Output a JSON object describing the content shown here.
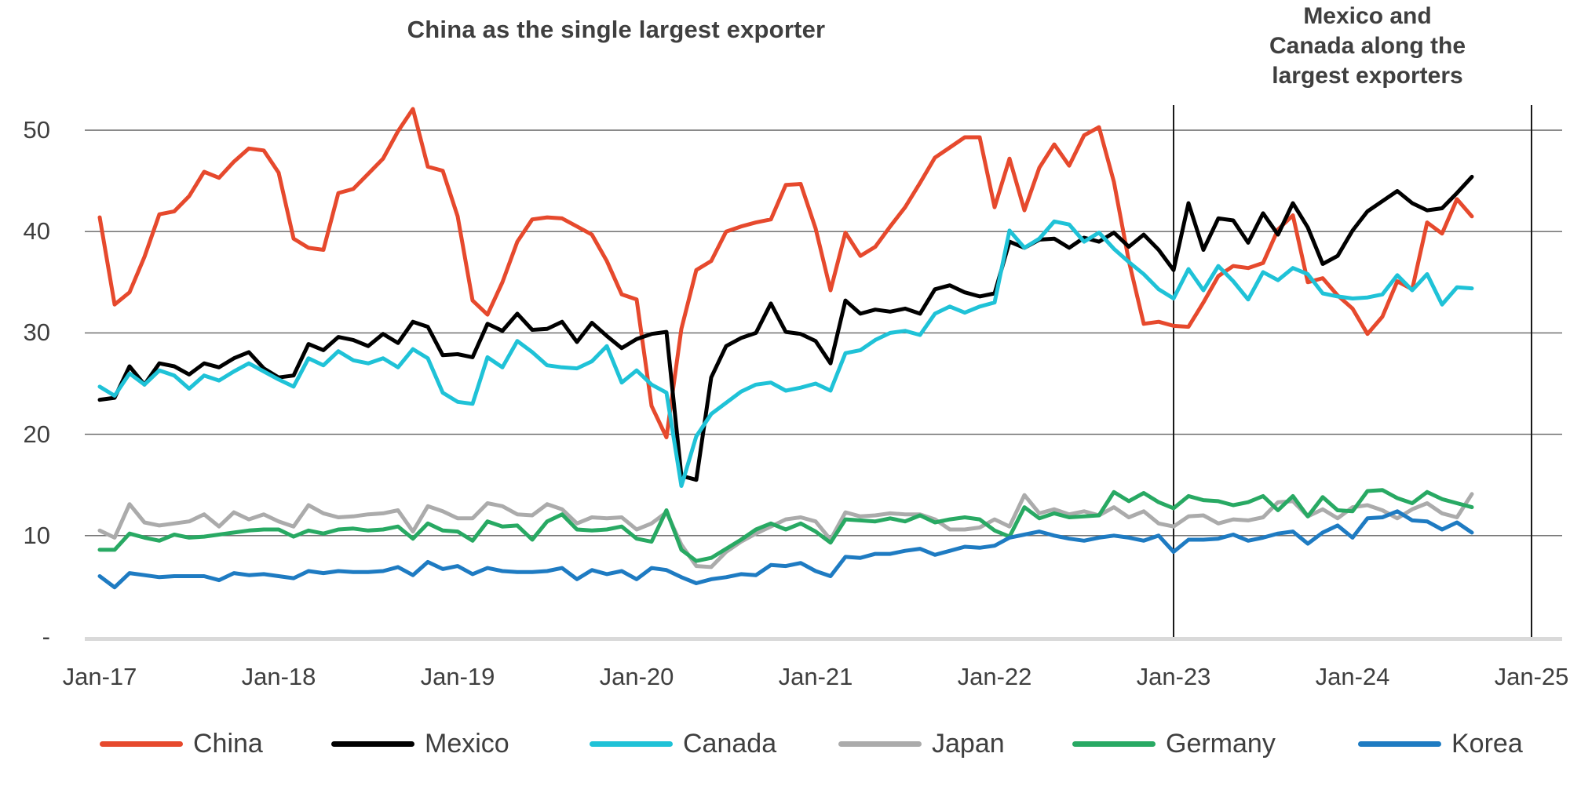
{
  "chart_data": {
    "type": "line",
    "annotations": {
      "left": "China as the single largest exporter",
      "right_lines": [
        "Mexico and",
        "Canada along the",
        "largest exporters"
      ]
    },
    "x_axis": {
      "tick_labels": [
        "Jan-17",
        "Jan-18",
        "Jan-19",
        "Jan-20",
        "Jan-21",
        "Jan-22",
        "Jan-23",
        "Jan-24",
        "Jan-25"
      ],
      "tick_month_indices": [
        0,
        12,
        24,
        36,
        48,
        60,
        72,
        84,
        96
      ],
      "start_month": "Jan-17",
      "end_month": "Sep-24"
    },
    "y_axis": {
      "ticks": [
        {
          "label": "50",
          "value": 50
        },
        {
          "label": "40",
          "value": 40
        },
        {
          "label": "30",
          "value": 30
        },
        {
          "label": "20",
          "value": 20
        },
        {
          "label": "10",
          "value": 10
        },
        {
          "label": "-",
          "value": 0
        }
      ],
      "range": [
        0,
        55
      ],
      "grid": true
    },
    "vertical_markers": [
      {
        "label": "Jan-23",
        "month_index": 72
      },
      {
        "label": "Jan-25",
        "month_index": 96
      }
    ],
    "legend_position": "bottom",
    "series": [
      {
        "name": "China",
        "color": "#E6492D",
        "values": [
          41.4,
          32.8,
          34.0,
          37.5,
          41.7,
          42.0,
          43.5,
          45.9,
          45.3,
          46.9,
          48.2,
          48.0,
          45.8,
          39.3,
          38.4,
          38.2,
          43.8,
          44.2,
          45.7,
          47.2,
          49.9,
          52.1,
          46.4,
          46.0,
          41.5,
          33.2,
          31.8,
          35.0,
          39.0,
          41.2,
          41.4,
          41.3,
          40.5,
          39.7,
          37.1,
          33.8,
          33.3,
          22.8,
          19.7,
          30.4,
          36.2,
          37.1,
          40.0,
          40.5,
          40.9,
          41.2,
          44.6,
          44.7,
          40.3,
          34.2,
          39.9,
          37.6,
          38.5,
          40.5,
          42.4,
          44.8,
          47.3,
          48.3,
          49.3,
          49.3,
          42.4,
          47.2,
          42.1,
          46.3,
          48.6,
          46.5,
          49.5,
          50.3,
          44.9,
          37.1,
          30.9,
          31.1,
          30.7,
          30.6,
          33.0,
          35.6,
          36.6,
          36.4,
          36.9,
          40.2,
          41.6,
          35.0,
          35.4,
          33.7,
          32.4,
          29.9,
          31.6,
          35.1,
          34.3,
          40.9,
          39.8,
          43.2,
          41.5
        ]
      },
      {
        "name": "Mexico",
        "color": "#000000",
        "values": [
          23.4,
          23.6,
          26.7,
          24.9,
          27.0,
          26.7,
          25.9,
          27.0,
          26.6,
          27.5,
          28.1,
          26.5,
          25.6,
          25.8,
          28.9,
          28.3,
          29.6,
          29.3,
          28.7,
          29.9,
          29.0,
          31.1,
          30.6,
          27.8,
          27.9,
          27.6,
          30.9,
          30.2,
          31.9,
          30.3,
          30.4,
          31.1,
          29.1,
          31.0,
          29.7,
          28.5,
          29.4,
          29.9,
          30.1,
          15.9,
          15.5,
          25.6,
          28.7,
          29.5,
          30.0,
          32.9,
          30.1,
          29.9,
          29.2,
          27.0,
          33.2,
          31.9,
          32.3,
          32.1,
          32.4,
          31.9,
          34.3,
          34.7,
          34.0,
          33.6,
          33.9,
          39.0,
          38.4,
          39.2,
          39.3,
          38.4,
          39.4,
          39.0,
          39.9,
          38.5,
          39.7,
          38.2,
          36.2,
          42.8,
          38.2,
          41.3,
          41.1,
          38.9,
          41.8,
          39.7,
          42.8,
          40.4,
          36.8,
          37.6,
          40.1,
          42.0,
          43.0,
          44.0,
          42.8,
          42.1,
          42.3,
          43.8,
          45.4
        ]
      },
      {
        "name": "Canada",
        "color": "#1FC2D7",
        "values": [
          24.7,
          23.8,
          26.0,
          24.9,
          26.3,
          25.8,
          24.5,
          25.8,
          25.3,
          26.2,
          27.0,
          26.2,
          25.4,
          24.7,
          27.5,
          26.8,
          28.2,
          27.3,
          27.0,
          27.5,
          26.6,
          28.4,
          27.5,
          24.1,
          23.2,
          23.0,
          27.6,
          26.6,
          29.2,
          28.1,
          26.8,
          26.6,
          26.5,
          27.2,
          28.7,
          25.1,
          26.3,
          24.9,
          24.1,
          14.9,
          19.8,
          22.0,
          23.1,
          24.2,
          24.9,
          25.1,
          24.3,
          24.6,
          25.0,
          24.3,
          28.0,
          28.3,
          29.3,
          30.0,
          30.2,
          29.8,
          31.9,
          32.6,
          32.0,
          32.6,
          33.0,
          40.1,
          38.4,
          39.3,
          41.0,
          40.7,
          39.0,
          39.9,
          38.3,
          37.0,
          35.8,
          34.3,
          33.4,
          36.3,
          34.2,
          36.6,
          35.1,
          33.3,
          36.0,
          35.2,
          36.4,
          35.8,
          33.9,
          33.6,
          33.4,
          33.5,
          33.8,
          35.7,
          34.2,
          35.8,
          32.8,
          34.5,
          34.4
        ]
      },
      {
        "name": "Japan",
        "color": "#ABABAB",
        "values": [
          10.5,
          9.8,
          13.1,
          11.3,
          11.0,
          11.2,
          11.4,
          12.1,
          10.9,
          12.3,
          11.6,
          12.1,
          11.4,
          10.9,
          13.0,
          12.2,
          11.8,
          11.9,
          12.1,
          12.2,
          12.5,
          10.4,
          12.9,
          12.4,
          11.7,
          11.7,
          13.2,
          12.9,
          12.1,
          12.0,
          13.1,
          12.6,
          11.2,
          11.8,
          11.7,
          11.8,
          10.6,
          11.2,
          12.3,
          9.1,
          7.0,
          6.9,
          8.4,
          9.4,
          10.2,
          10.9,
          11.6,
          11.8,
          11.4,
          9.6,
          12.3,
          11.9,
          12.0,
          12.2,
          12.1,
          12.1,
          11.6,
          10.6,
          10.6,
          10.8,
          11.6,
          10.9,
          14.0,
          12.2,
          12.6,
          12.1,
          12.4,
          12.0,
          12.8,
          11.8,
          12.4,
          11.2,
          10.9,
          11.9,
          12.0,
          11.2,
          11.6,
          11.5,
          11.8,
          13.3,
          13.4,
          11.9,
          12.6,
          11.7,
          12.8,
          13.0,
          12.5,
          11.7,
          12.6,
          13.2,
          12.2,
          11.8,
          14.1
        ]
      },
      {
        "name": "Germany",
        "color": "#28A963",
        "values": [
          8.6,
          8.6,
          10.2,
          9.8,
          9.5,
          10.1,
          9.8,
          9.9,
          10.1,
          10.3,
          10.5,
          10.6,
          10.6,
          9.9,
          10.5,
          10.2,
          10.6,
          10.7,
          10.5,
          10.6,
          10.9,
          9.7,
          11.2,
          10.5,
          10.4,
          9.5,
          11.4,
          10.9,
          11.0,
          9.6,
          11.4,
          12.1,
          10.6,
          10.5,
          10.6,
          10.9,
          9.7,
          9.4,
          12.5,
          8.6,
          7.5,
          7.8,
          8.7,
          9.6,
          10.6,
          11.2,
          10.6,
          11.2,
          10.4,
          9.3,
          11.6,
          11.5,
          11.4,
          11.7,
          11.4,
          12.0,
          11.3,
          11.6,
          11.8,
          11.6,
          10.5,
          9.9,
          12.8,
          11.7,
          12.2,
          11.8,
          11.9,
          12.0,
          14.3,
          13.4,
          14.2,
          13.3,
          12.7,
          13.9,
          13.5,
          13.4,
          13.0,
          13.3,
          13.9,
          12.5,
          13.9,
          11.9,
          13.8,
          12.5,
          12.4,
          14.4,
          14.5,
          13.7,
          13.2,
          14.3,
          13.6,
          13.2,
          12.8
        ]
      },
      {
        "name": "Korea",
        "color": "#1E7BC2",
        "values": [
          6.0,
          4.9,
          6.3,
          6.1,
          5.9,
          6.0,
          6.0,
          6.0,
          5.6,
          6.3,
          6.1,
          6.2,
          6.0,
          5.8,
          6.5,
          6.3,
          6.5,
          6.4,
          6.4,
          6.5,
          6.9,
          6.1,
          7.4,
          6.7,
          7.0,
          6.2,
          6.8,
          6.5,
          6.4,
          6.4,
          6.5,
          6.8,
          5.7,
          6.6,
          6.2,
          6.5,
          5.7,
          6.8,
          6.6,
          5.9,
          5.3,
          5.7,
          5.9,
          6.2,
          6.1,
          7.1,
          7.0,
          7.3,
          6.5,
          6.0,
          7.9,
          7.8,
          8.2,
          8.2,
          8.5,
          8.7,
          8.1,
          8.5,
          8.9,
          8.8,
          9.0,
          9.8,
          10.1,
          10.4,
          10.0,
          9.7,
          9.5,
          9.8,
          10.0,
          9.8,
          9.5,
          10.0,
          8.4,
          9.6,
          9.6,
          9.7,
          10.1,
          9.5,
          9.8,
          10.2,
          10.4,
          9.2,
          10.3,
          11.0,
          9.8,
          11.7,
          11.8,
          12.4,
          11.5,
          11.4,
          10.6,
          11.3,
          10.3
        ]
      }
    ]
  }
}
